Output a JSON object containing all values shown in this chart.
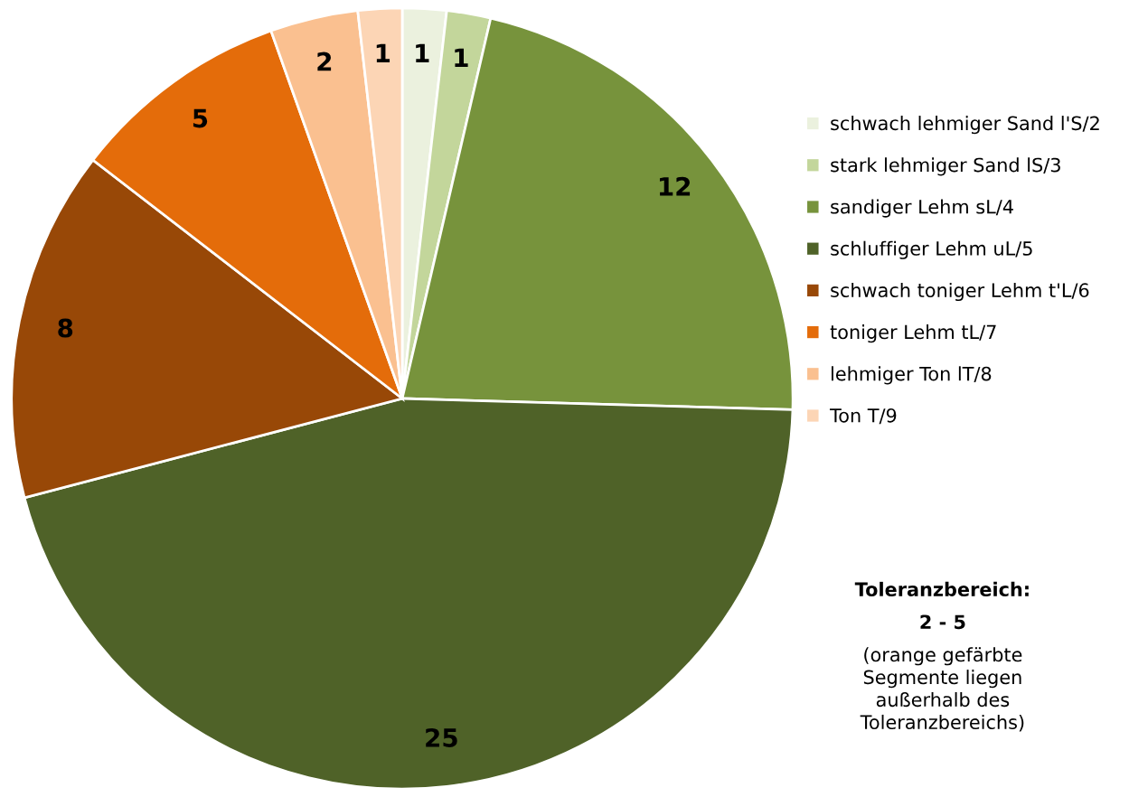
{
  "chart_data": {
    "type": "pie",
    "categories": [
      "schwach lehmiger Sand l'S/2",
      "stark lehmiger Sand lS/3",
      "sandiger Lehm sL/4",
      "schluffiger Lehm uL/5",
      "schwach toniger Lehm t'L/6",
      "toniger Lehm tL/7",
      "lehmiger Ton lT/8",
      "Ton T/9"
    ],
    "values": [
      1,
      1,
      12,
      25,
      8,
      5,
      2,
      1
    ],
    "colors": [
      "#ebf1de",
      "#c3d69b",
      "#77933c",
      "#4f6228",
      "#984807",
      "#e46c0a",
      "#fac090",
      "#fcd5b5"
    ],
    "data_labels": true,
    "legend": "right",
    "annotations": [
      "Toleranzbereich:",
      "2 - 5",
      "(orange gefärbte\nSegmente liegen\naußerhalb des\nToleranzbereichs)"
    ]
  }
}
